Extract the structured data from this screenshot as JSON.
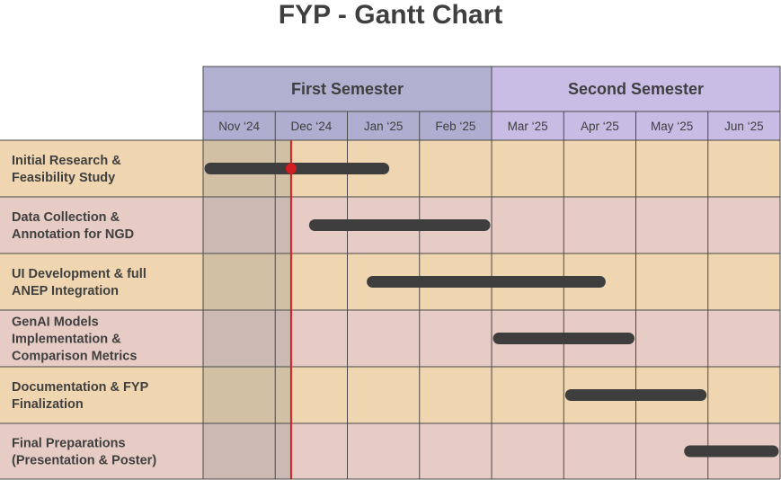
{
  "title": "FYP - Gantt Chart",
  "chart_data": {
    "type": "gantt",
    "title": "FYP - Gantt Chart",
    "semesters": [
      {
        "label": "First Semester",
        "span": [
          0,
          4
        ]
      },
      {
        "label": "Second Semester",
        "span": [
          4,
          8
        ]
      }
    ],
    "months": [
      "Nov ‘24",
      "Dec ‘24",
      "Jan ‘25",
      "Feb ‘25",
      "Mar ‘25",
      "Apr ‘25",
      "May ‘25",
      "Jun ‘25"
    ],
    "tasks": [
      {
        "label": [
          "Initial Research &",
          "Feasibility Study"
        ],
        "start": 0.1,
        "end": 2.5
      },
      {
        "label": [
          "Data Collection &",
          "Annotation for NGD"
        ],
        "start": 1.55,
        "end": 3.9
      },
      {
        "label": [
          "UI Development & full",
          "ANEP Integration"
        ],
        "start": 2.35,
        "end": 5.5
      },
      {
        "label": [
          "GenAI Models",
          "Implementation &",
          "Comparison Metrics"
        ],
        "start": 4.1,
        "end": 5.9
      },
      {
        "label": [
          "Documentation & FYP",
          "Finalization"
        ],
        "start": 5.1,
        "end": 6.9
      },
      {
        "label": [
          "Final Preparations",
          "(Presentation & Poster)"
        ],
        "start": 6.75,
        "end": 7.9
      }
    ],
    "today_marker": {
      "position": 1.22,
      "row": 0
    },
    "elapsed_until": 1.22,
    "colors": {
      "semester1_header": "#b1b0d0",
      "semester2_header": "#c9bde6",
      "month_header_sem1": "#b0aed0",
      "month_header_sem2": "#c8bce5",
      "row_odd": "#efd6b0",
      "row_even": "#e6ccc4",
      "elapsed_shade": "#8a8a8a",
      "bar": "#3e3e3e",
      "today_line": "#d21d22",
      "grid": "#4a4a4a"
    }
  }
}
